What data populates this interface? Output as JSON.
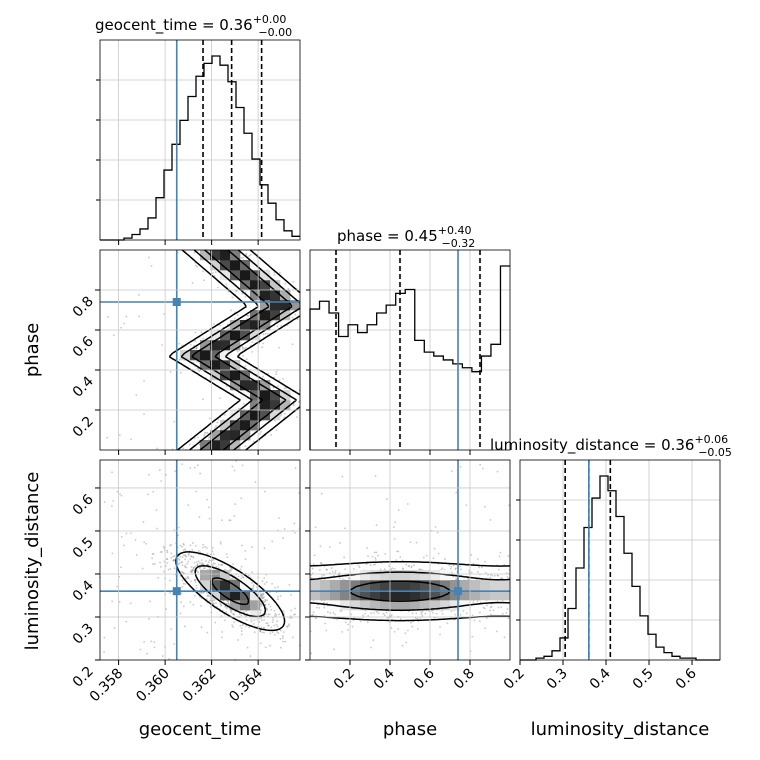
{
  "chart_data": {
    "type": "corner",
    "parameters": [
      "geocent_time",
      "phase",
      "luminosity_distance"
    ],
    "truths": {
      "geocent_time": 0.3605,
      "phase": 0.74,
      "luminosity_distance": 0.36
    },
    "truth_color": "#4682b4",
    "ranges": {
      "geocent_time": [
        0.3572,
        0.3658
      ],
      "phase": [
        0.0,
        1.0
      ],
      "luminosity_distance": [
        0.2,
        0.665
      ]
    },
    "ticks": {
      "geocent_time": [
        "0.358",
        "0.360",
        "0.362",
        "0.364"
      ],
      "phase": [
        "0.2",
        "0.4",
        "0.6",
        "0.8"
      ],
      "luminosity_distance": [
        "0.2",
        "0.3",
        "0.4",
        "0.5",
        "0.6"
      ]
    },
    "titles": [
      {
        "name": "geocent_time",
        "value": "0.36",
        "plus": "+0.00",
        "minus": "−0.00"
      },
      {
        "name": "phase",
        "value": "0.45",
        "plus": "+0.40",
        "minus": "−0.32"
      },
      {
        "name": "luminosity_distance",
        "value": "0.36",
        "plus": "+0.06",
        "minus": "−0.05"
      }
    ],
    "quantiles": {
      "geocent_time": [
        0.36163,
        0.36286,
        0.36415
      ],
      "phase": [
        0.13,
        0.45,
        0.85
      ],
      "luminosity_distance": [
        0.305,
        0.36,
        0.41
      ]
    },
    "histograms": {
      "geocent_time": [
        0,
        0,
        0,
        1,
        3,
        6,
        12,
        23,
        38,
        52,
        65,
        78,
        89,
        96,
        100,
        95,
        86,
        72,
        58,
        44,
        30,
        20,
        11,
        5,
        2
      ],
      "phase": [
        72,
        76,
        70,
        58,
        64,
        60,
        64,
        70,
        74,
        80,
        82,
        56,
        50,
        48,
        46,
        44,
        42,
        40,
        48,
        54,
        94
      ],
      "luminosity_distance": [
        0,
        0,
        1,
        2,
        5,
        12,
        28,
        50,
        72,
        88,
        100,
        92,
        78,
        58,
        40,
        24,
        14,
        7,
        4,
        2,
        1,
        1,
        0,
        0,
        0
      ]
    },
    "grid": true
  }
}
